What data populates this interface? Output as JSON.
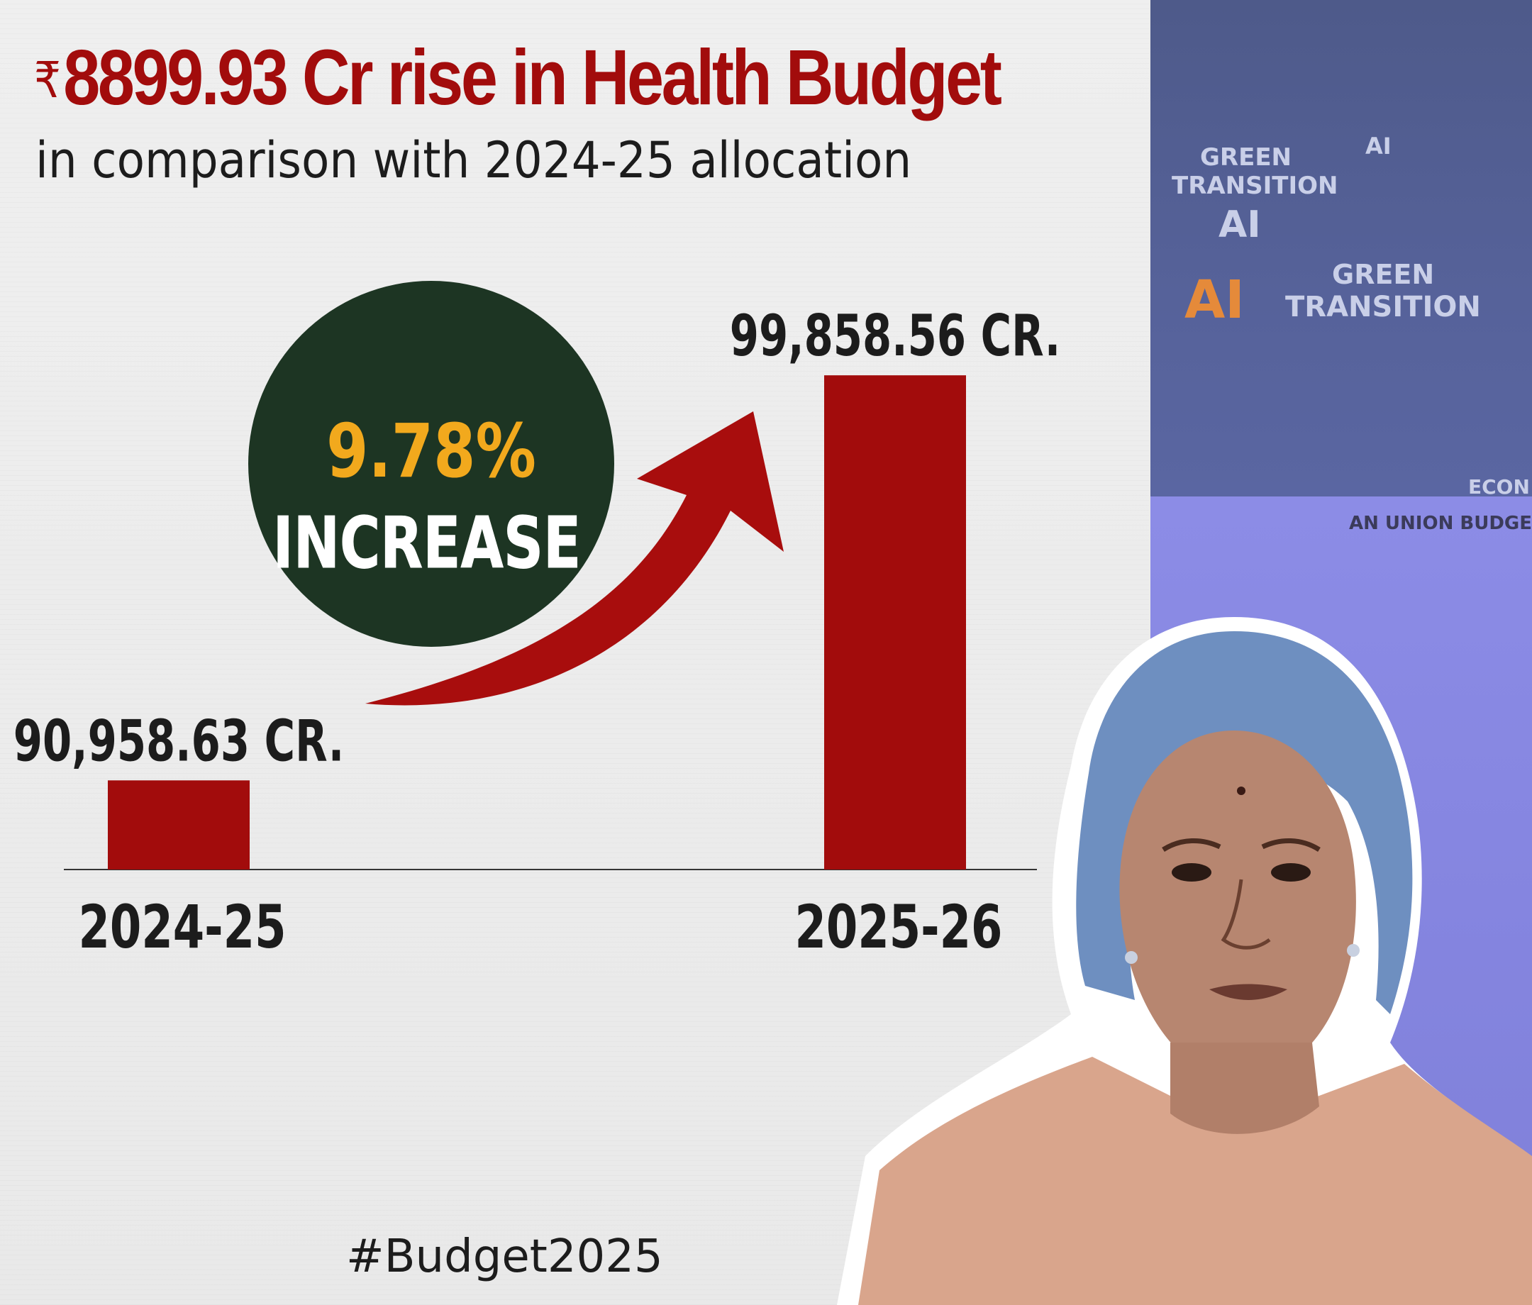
{
  "header": {
    "currency_symbol": "₹",
    "title": "8899.93 Cr rise in Health Budget",
    "subtitle": "in comparison with 2024-25 allocation"
  },
  "badge": {
    "percent": "9.78%",
    "label": "INCREASE"
  },
  "hashtag": "#Budget2025",
  "side_panel": {
    "labels": [
      "GREEN",
      "TRANSITION",
      "AI",
      "AI",
      "GREEN",
      "TRANSITION",
      "AI",
      "ECON",
      "AN UNION BUDGET"
    ]
  },
  "colors": {
    "accent_red": "#a20c0c",
    "badge_green": "#1d3523",
    "badge_yellow": "#f2a91d"
  },
  "chart_data": {
    "type": "bar",
    "categories": [
      "2024-25",
      "2025-26"
    ],
    "values": [
      90958.63,
      99858.56
    ],
    "value_labels": [
      "90,958.63 CR.",
      "99,858.56 CR."
    ],
    "title": "",
    "xlabel": "",
    "ylabel": "",
    "ylim": [
      89000,
      100500
    ],
    "grid": false,
    "legend": "none"
  }
}
